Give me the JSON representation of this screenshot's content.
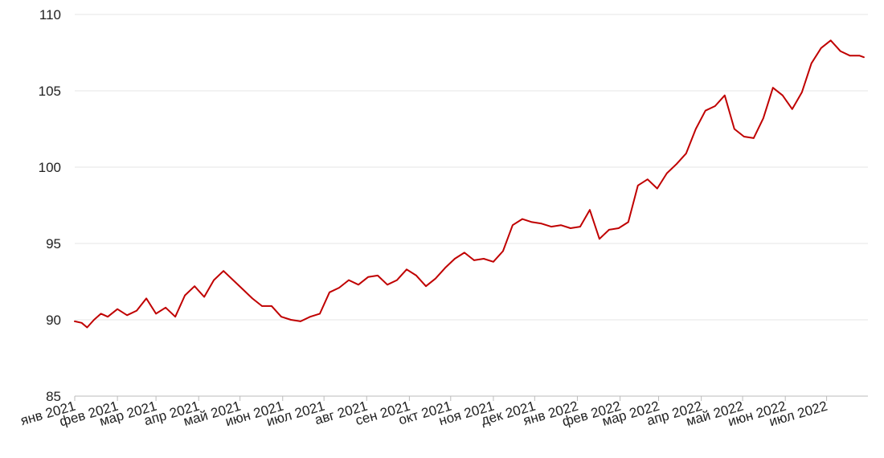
{
  "chart_data": {
    "type": "line",
    "title": "",
    "xlabel": "",
    "ylabel": "",
    "ylim": [
      85,
      110
    ],
    "y_ticks": [
      "85",
      "90",
      "95",
      "100",
      "105",
      "110"
    ],
    "x_ticks": [
      "янв 2021",
      "фев 2021",
      "мар 2021",
      "апр 2021",
      "май 2021",
      "июн 2021",
      "июл 2021",
      "авг 2021",
      "сен 2021",
      "окт 2021",
      "ноя 2021",
      "дек 2021",
      "янв 2022",
      "фев 2022",
      "мар 2022",
      "апр 2022",
      "май 2022",
      "июн 2022",
      "июл 2022"
    ],
    "grid": true,
    "legend": "none",
    "series": [
      {
        "color": "#c00000",
        "x": [
          "2021-01-01",
          "2021-01-06",
          "2021-01-10",
          "2021-01-15",
          "2021-01-20",
          "2021-01-25",
          "2021-02-01",
          "2021-02-08",
          "2021-02-15",
          "2021-02-22",
          "2021-03-01",
          "2021-03-08",
          "2021-03-15",
          "2021-03-22",
          "2021-03-29",
          "2021-04-05",
          "2021-04-12",
          "2021-04-19",
          "2021-04-26",
          "2021-05-03",
          "2021-05-10",
          "2021-05-17",
          "2021-05-24",
          "2021-05-31",
          "2021-06-07",
          "2021-06-14",
          "2021-06-21",
          "2021-06-28",
          "2021-07-05",
          "2021-07-12",
          "2021-07-19",
          "2021-07-26",
          "2021-08-02",
          "2021-08-09",
          "2021-08-16",
          "2021-08-23",
          "2021-08-30",
          "2021-09-06",
          "2021-09-13",
          "2021-09-20",
          "2021-09-27",
          "2021-10-04",
          "2021-10-11",
          "2021-10-18",
          "2021-10-25",
          "2021-11-01",
          "2021-11-08",
          "2021-11-15",
          "2021-11-22",
          "2021-11-29",
          "2021-12-06",
          "2021-12-13",
          "2021-12-20",
          "2021-12-27",
          "2022-01-03",
          "2022-01-10",
          "2022-01-17",
          "2022-01-24",
          "2022-01-31",
          "2022-02-07",
          "2022-02-14",
          "2022-02-21",
          "2022-02-28",
          "2022-03-07",
          "2022-03-14",
          "2022-03-21",
          "2022-03-28",
          "2022-04-04",
          "2022-04-11",
          "2022-04-18",
          "2022-04-25",
          "2022-05-02",
          "2022-05-09",
          "2022-05-16",
          "2022-05-23",
          "2022-05-30",
          "2022-06-06",
          "2022-06-13",
          "2022-06-20",
          "2022-06-27",
          "2022-07-04",
          "2022-07-11",
          "2022-07-18",
          "2022-07-25",
          "2022-07-28"
        ],
        "values": [
          89.9,
          89.8,
          89.5,
          90.0,
          90.4,
          90.2,
          90.7,
          90.3,
          90.6,
          91.4,
          90.4,
          90.8,
          90.2,
          91.6,
          92.2,
          91.5,
          92.6,
          93.2,
          92.6,
          92.0,
          91.4,
          90.9,
          90.9,
          90.2,
          90.0,
          89.9,
          90.2,
          90.4,
          91.8,
          92.1,
          92.6,
          92.3,
          92.8,
          92.9,
          92.3,
          92.6,
          93.3,
          92.9,
          92.2,
          92.7,
          93.4,
          94.0,
          94.4,
          93.9,
          94.0,
          93.8,
          94.5,
          96.2,
          96.6,
          96.4,
          96.3,
          96.1,
          96.2,
          96.0,
          96.1,
          97.2,
          95.3,
          95.9,
          96.0,
          96.4,
          98.8,
          99.2,
          98.6,
          99.6,
          100.2,
          100.9,
          102.5,
          103.7,
          104.0,
          104.7,
          102.5,
          102.0,
          101.9,
          103.2,
          105.2,
          104.7,
          103.8,
          104.9,
          106.8,
          107.8,
          108.3,
          107.6,
          107.3,
          107.3,
          107.2
        ]
      }
    ]
  }
}
